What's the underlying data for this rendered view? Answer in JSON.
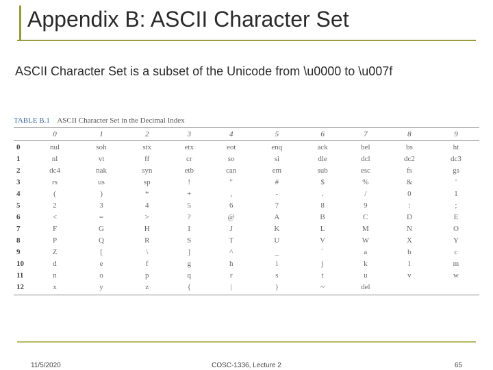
{
  "title": "Appendix B: ASCII Character Set",
  "subtitle": "ASCII Character Set is a subset of the Unicode from \\u0000 to \\u007f",
  "table": {
    "label": "TABLE B.1",
    "caption": "ASCII Character Set in the Decimal Index",
    "columns": [
      "",
      "0",
      "1",
      "2",
      "3",
      "4",
      "5",
      "6",
      "7",
      "8",
      "9"
    ],
    "rows": [
      [
        "0",
        "nul",
        "soh",
        "stx",
        "etx",
        "eot",
        "enq",
        "ack",
        "bel",
        "bs",
        "ht"
      ],
      [
        "1",
        "nl",
        "vt",
        "ff",
        "cr",
        "so",
        "si",
        "dle",
        "dcl",
        "dc2",
        "dc3"
      ],
      [
        "2",
        "dc4",
        "nak",
        "syn",
        "etb",
        "can",
        "em",
        "sub",
        "esc",
        "fs",
        "gs"
      ],
      [
        "3",
        "rs",
        "us",
        "sp",
        "!",
        "\"",
        "#",
        "$",
        "%",
        "&",
        "'"
      ],
      [
        "4",
        "(",
        ")",
        "*",
        "+",
        ",",
        "-",
        ".",
        "/",
        "0",
        "1"
      ],
      [
        "5",
        "2",
        "3",
        "4",
        "5",
        "6",
        "7",
        "8",
        "9",
        ":",
        ";"
      ],
      [
        "6",
        "<",
        "=",
        ">",
        "?",
        "@",
        "A",
        "B",
        "C",
        "D",
        "E"
      ],
      [
        "7",
        "F",
        "G",
        "H",
        "I",
        "J",
        "K",
        "L",
        "M",
        "N",
        "O"
      ],
      [
        "8",
        "P",
        "Q",
        "R",
        "S",
        "T",
        "U",
        "V",
        "W",
        "X",
        "Y"
      ],
      [
        "9",
        "Z",
        "[",
        "\\",
        "]",
        "^",
        "_",
        "`",
        "a",
        "b",
        "c"
      ],
      [
        "10",
        "d",
        "e",
        "f",
        "g",
        "h",
        "i",
        "j",
        "k",
        "l",
        "m"
      ],
      [
        "11",
        "n",
        "o",
        "p",
        "q",
        "r",
        "s",
        "t",
        "u",
        "v",
        "w"
      ],
      [
        "12",
        "x",
        "y",
        "z",
        "{",
        "|",
        "}",
        "~",
        "del",
        "",
        ""
      ]
    ]
  },
  "footer": {
    "date": "11/5/2020",
    "center": "COSC-1336, Lecture 2",
    "page": "65"
  },
  "colors": {
    "accent": "#9a9a3a",
    "text": "#2a2a2a",
    "table_label": "#3a6aa8",
    "table_rule": "#888888",
    "footer_line": "#b8b86a"
  }
}
